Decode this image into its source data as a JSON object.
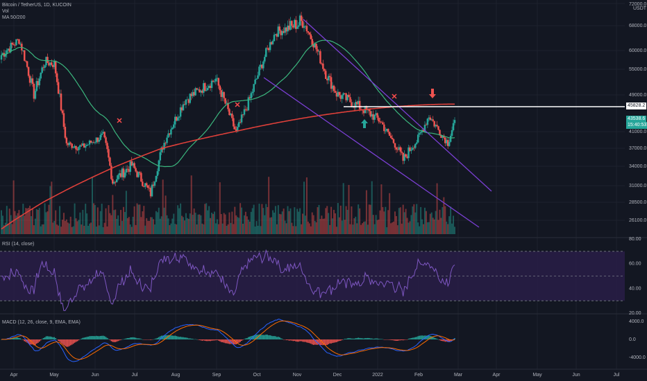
{
  "colors": {
    "background": "#131722",
    "grid": "#1e222d",
    "candle_up": "#26a69a",
    "candle_down": "#ef5350",
    "ma50": "#3bb77e",
    "ma200": "#e0403a",
    "channel": "#7b3fd4",
    "rsi_line": "#7e57c2",
    "rsi_band": "#2a1e4a",
    "macd_line": "#2962ff",
    "signal_line": "#ff6d00",
    "resistance": "#ffffff",
    "axis_text": "#b2b5be"
  },
  "legends": {
    "symbol": "Bitcoin / TetherUS, 1D, KUCOIN",
    "vol": "Vol",
    "ma": "MA 50/200",
    "rsi": "RSI (14, close)",
    "macd": "MACD (12, 26, close, 9, EMA, EMA)"
  },
  "price_axis": {
    "currency": "USDT",
    "top_value": "72000.0",
    "labels": [
      "68000.0",
      "60000.0",
      "55000.0",
      "49000.0",
      "41000.0",
      "37000.0",
      "34000.0",
      "31000.0",
      "28500.0",
      "26100.0"
    ]
  },
  "price_tags": {
    "resistance": "45828.2",
    "last_price": "43538.6",
    "countdown": "15:40:53"
  },
  "rsi_axis": {
    "labels": [
      "80.00",
      "60.00",
      "40.00",
      "20.00"
    ],
    "upper": 70,
    "middle": 50,
    "lower": 30
  },
  "macd_axis": {
    "labels": [
      "4000.0",
      "0.0",
      "-4000.0"
    ]
  },
  "time_axis": {
    "labels": [
      "Apr",
      "May",
      "Jun",
      "Jul",
      "Aug",
      "Sep",
      "Oct",
      "Nov",
      "Dec",
      "2022",
      "Feb",
      "Mar",
      "Apr",
      "May",
      "Jun",
      "Jul"
    ]
  },
  "chart_data": [
    {
      "type": "candlestick",
      "title": "Bitcoin / TetherUS, 1D, KUCOIN",
      "x_range": [
        "2021-04",
        "2022-03"
      ],
      "y_unit": "USDT",
      "ohlc_close_approx": [
        {
          "x": "2021-04-01",
          "close": 58800
        },
        {
          "x": "2021-04-14",
          "close": 63500
        },
        {
          "x": "2021-04-25",
          "close": 49100
        },
        {
          "x": "2021-05-03",
          "close": 57000
        },
        {
          "x": "2021-05-10",
          "close": 56500
        },
        {
          "x": "2021-05-19",
          "close": 38000
        },
        {
          "x": "2021-05-31",
          "close": 37300
        },
        {
          "x": "2021-06-15",
          "close": 40000
        },
        {
          "x": "2021-06-22",
          "close": 31600
        },
        {
          "x": "2021-07-06",
          "close": 34200
        },
        {
          "x": "2021-07-20",
          "close": 29800
        },
        {
          "x": "2021-08-01",
          "close": 40000
        },
        {
          "x": "2021-08-14",
          "close": 47800
        },
        {
          "x": "2021-09-06",
          "close": 52700
        },
        {
          "x": "2021-09-21",
          "close": 40700
        },
        {
          "x": "2021-10-01",
          "close": 48100
        },
        {
          "x": "2021-10-20",
          "close": 65900
        },
        {
          "x": "2021-11-10",
          "close": 68900
        },
        {
          "x": "2021-11-26",
          "close": 54000
        },
        {
          "x": "2021-12-04",
          "close": 49300
        },
        {
          "x": "2021-12-20",
          "close": 46600
        },
        {
          "x": "2022-01-05",
          "close": 43400
        },
        {
          "x": "2022-01-22",
          "close": 35000
        },
        {
          "x": "2022-02-01",
          "close": 38700
        },
        {
          "x": "2022-02-10",
          "close": 44500
        },
        {
          "x": "2022-02-24",
          "close": 38300
        },
        {
          "x": "2022-03-01",
          "close": 43538.6
        }
      ],
      "series": [
        {
          "name": "MA 50",
          "type": "line"
        },
        {
          "name": "MA 200",
          "type": "line"
        }
      ],
      "annotations": [
        "45828.2 resistance line",
        "descending channel",
        "green up arrow",
        "red down arrow",
        "red x markers on MA crosses"
      ]
    },
    {
      "type": "line",
      "title": "RSI (14, close)",
      "ylim": [
        20,
        80
      ],
      "levels": [
        30,
        50,
        70
      ],
      "last_value_approx": 60
    },
    {
      "type": "bar",
      "title": "MACD (12, 26, close, 9, EMA, EMA)",
      "ylim": [
        -4000,
        4000
      ],
      "series": [
        {
          "name": "MACD"
        },
        {
          "name": "Signal"
        },
        {
          "name": "Histogram"
        }
      ]
    }
  ]
}
